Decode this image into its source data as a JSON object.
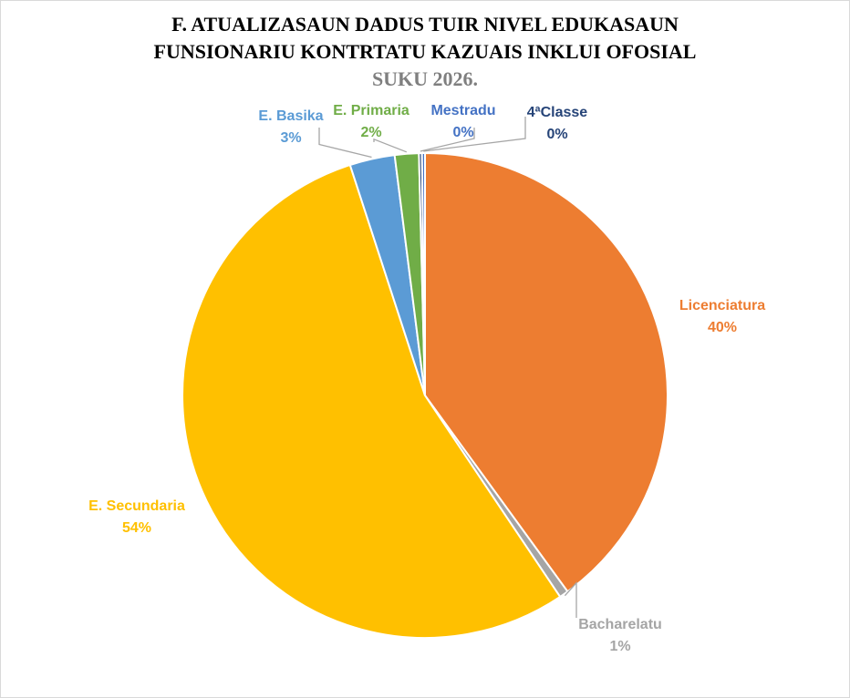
{
  "chart_data": {
    "type": "pie",
    "title_lines": [
      "F. ATUALIZASAUN  DADUS TUIR NIVEL EDUKASAUN",
      "FUNSIONARIU KONTRTATU  KAZUAIS  INKLUI OFOSIAL"
    ],
    "subtitle": "SUKU 2026.",
    "slices": [
      {
        "label": "Licenciatura",
        "value": 40,
        "display": "40%",
        "color": "#ED7D31"
      },
      {
        "label": "Bacharelatu",
        "value": 0.6,
        "display": "1%",
        "color": "#A5A5A5"
      },
      {
        "label": "E. Secundaria",
        "value": 54.4,
        "display": "54%",
        "color": "#FFC000"
      },
      {
        "label": "E. Basika",
        "value": 3,
        "display": "3%",
        "color": "#5B9BD5"
      },
      {
        "label": "E. Primaria",
        "value": 1.6,
        "display": "2%",
        "color": "#70AD47"
      },
      {
        "label": "Mestradu",
        "value": 0.2,
        "display": "0%",
        "color": "#264478"
      },
      {
        "label": "4ªClasse",
        "value": 0.2,
        "display": "0%",
        "color": "#4472C4"
      }
    ],
    "label_colors": {
      "Licenciatura": "#ED7D31",
      "Bacharelatu": "#A5A5A5",
      "E. Secundaria": "#FFC000",
      "E. Basika": "#5B9BD5",
      "E. Primaria": "#70AD47",
      "Mestradu": "#4472C4",
      "4ªClasse": "#264478"
    }
  }
}
